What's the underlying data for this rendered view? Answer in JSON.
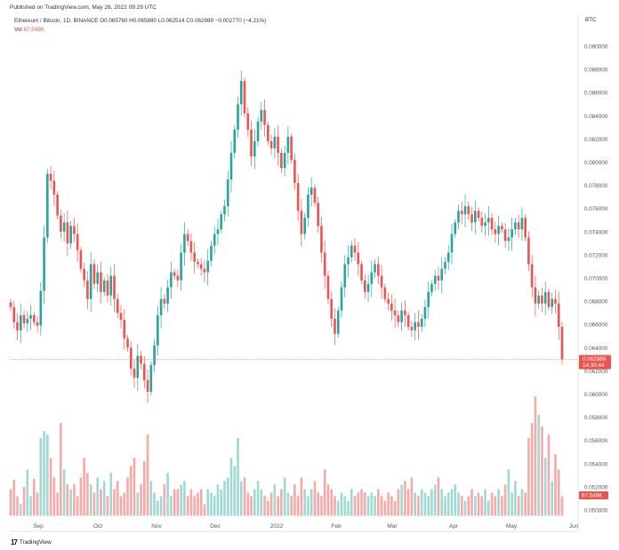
{
  "header": {
    "published": "Published on TradingView.com, May 26, 2022 09:29 UTC",
    "symbol": "Ethereum / Bitcoin, 1D, BINANCE",
    "ohlc": "O0.065760 H0.065880 L0.062514 C0.062989 −0.002770 (−4.21%)",
    "vol_label": "Vol",
    "vol_value": "67.549K",
    "currency": "BTC"
  },
  "footer": {
    "brand": "TradingView"
  },
  "colors": {
    "up": "#26a69a",
    "down": "#ef5350",
    "up_vol": "#9fd9d2",
    "down_vol": "#f7a9a7",
    "price_tag": "#ef5350",
    "vol_tag": "#ef5350"
  },
  "chart_data": {
    "type": "candlestick",
    "title": "Ethereum / Bitcoin, 1D, BINANCE",
    "xlabel": "",
    "ylabel": "",
    "x_ticks": [
      "Sep",
      "Oct",
      "Nov",
      "Dec",
      "2022",
      "Feb",
      "Mar",
      "Apr",
      "May",
      "Jun"
    ],
    "y_ticks": [
      "0.090000",
      "0.088000",
      "0.086000",
      "0.084000",
      "0.082000",
      "0.080000",
      "0.078000",
      "0.076000",
      "0.074000",
      "0.072000",
      "0.070000",
      "0.068000",
      "0.066000",
      "0.064000",
      "0.062000",
      "0.060000",
      "0.058000",
      "0.056000",
      "0.054000",
      "0.052000",
      "0.050000"
    ],
    "ylim": [
      0.05,
      0.091
    ],
    "last_price": "0.062989",
    "countdown": "14:30:44",
    "last_volume_label": "67.549K",
    "price_path": [
      0.0675,
      0.0662,
      0.0655,
      0.0668,
      0.0661,
      0.0665,
      0.0668,
      0.0662,
      0.0659,
      0.0689,
      0.0735,
      0.079,
      0.0784,
      0.0772,
      0.0754,
      0.074,
      0.0748,
      0.073,
      0.0745,
      0.0738,
      0.0724,
      0.0708,
      0.0698,
      0.0682,
      0.0712,
      0.0695,
      0.0705,
      0.0688,
      0.0698,
      0.0685,
      0.0702,
      0.0682,
      0.067,
      0.0664,
      0.0648,
      0.064,
      0.0622,
      0.0614,
      0.0633,
      0.0626,
      0.0612,
      0.0602,
      0.0625,
      0.0642,
      0.0668,
      0.0682,
      0.0678,
      0.0692,
      0.0705,
      0.0702,
      0.0698,
      0.0722,
      0.0738,
      0.0732,
      0.0722,
      0.0714,
      0.0712,
      0.0708,
      0.0705,
      0.0715,
      0.0728,
      0.0738,
      0.0742,
      0.0755,
      0.0762,
      0.0785,
      0.0808,
      0.0828,
      0.085,
      0.087,
      0.0842,
      0.0828,
      0.0805,
      0.0818,
      0.0835,
      0.0845,
      0.0832,
      0.0818,
      0.0812,
      0.0822,
      0.0808,
      0.0795,
      0.0808,
      0.0822,
      0.0802,
      0.0782,
      0.0758,
      0.0738,
      0.0752,
      0.0772,
      0.0778,
      0.0765,
      0.0745,
      0.0722,
      0.0702,
      0.0682,
      0.0665,
      0.0652,
      0.0672,
      0.0692,
      0.0712,
      0.0718,
      0.0728,
      0.0722,
      0.0712,
      0.0698,
      0.0688,
      0.0695,
      0.0705,
      0.0712,
      0.0702,
      0.0692,
      0.0682,
      0.0678,
      0.0672,
      0.0668,
      0.0662,
      0.0672,
      0.0668,
      0.0658,
      0.0655,
      0.0662,
      0.0658,
      0.0665,
      0.0675,
      0.0688,
      0.0695,
      0.0702,
      0.0698,
      0.0708,
      0.0714,
      0.0722,
      0.0738,
      0.0748,
      0.0758,
      0.0755,
      0.0762,
      0.0755,
      0.0748,
      0.0758,
      0.0752,
      0.0745,
      0.0748,
      0.0752,
      0.0742,
      0.0738,
      0.0745,
      0.0742,
      0.0732,
      0.0735,
      0.0742,
      0.0748,
      0.0742,
      0.0752,
      0.0735,
      0.0712,
      0.0692,
      0.0678,
      0.0685,
      0.0678,
      0.0688,
      0.0675,
      0.0682,
      0.0678,
      0.0658,
      0.063
    ],
    "volume": [
      0.0518,
      0.0526,
      0.0512,
      0.0505,
      0.052,
      0.0535,
      0.0512,
      0.0527,
      0.0515,
      0.0562,
      0.0568,
      0.0565,
      0.0545,
      0.0528,
      0.0515,
      0.0575,
      0.0535,
      0.0522,
      0.0518,
      0.0522,
      0.0512,
      0.0528,
      0.0545,
      0.0532,
      0.0522,
      0.0515,
      0.0528,
      0.0518,
      0.0525,
      0.0512,
      0.0532,
      0.0518,
      0.0525,
      0.0512,
      0.0515,
      0.0528,
      0.0538,
      0.0545,
      0.0515,
      0.0522,
      0.0542,
      0.0565,
      0.0525,
      0.0515,
      0.0508,
      0.0512,
      0.0522,
      0.0532,
      0.0512,
      0.0518,
      0.0518,
      0.0522,
      0.0525,
      0.0512,
      0.0518,
      0.0512,
      0.0515,
      0.0518,
      0.0505,
      0.0518,
      0.0515,
      0.0512,
      0.0522,
      0.0518,
      0.0525,
      0.0528,
      0.0545,
      0.0538,
      0.0562,
      0.0525,
      0.0528,
      0.0515,
      0.0512,
      0.0518,
      0.0525,
      0.0518,
      0.0512,
      0.0508,
      0.0515,
      0.0522,
      0.0512,
      0.0518,
      0.0528,
      0.0515,
      0.0512,
      0.0522,
      0.0512,
      0.0528,
      0.0518,
      0.0512,
      0.0518,
      0.0525,
      0.0515,
      0.0512,
      0.0535,
      0.0522,
      0.0518,
      0.0512,
      0.0508,
      0.0515,
      0.0512,
      0.0508,
      0.0518,
      0.0512,
      0.0515,
      0.0518,
      0.0515,
      0.0512,
      0.0515,
      0.0512,
      0.0518,
      0.0512,
      0.0508,
      0.0515,
      0.0512,
      0.0508,
      0.0518,
      0.0522,
      0.0525,
      0.0518,
      0.0528,
      0.0515,
      0.0512,
      0.0518,
      0.0515,
      0.0512,
      0.0518,
      0.0522,
      0.0528,
      0.0518,
      0.0512,
      0.0515,
      0.0518,
      0.0522,
      0.0515,
      0.0512,
      0.0508,
      0.0512,
      0.0518,
      0.0512,
      0.0515,
      0.0512,
      0.0518,
      0.0508,
      0.0515,
      0.0512,
      0.0518,
      0.0512,
      0.0522,
      0.0535,
      0.0515,
      0.0525,
      0.0512,
      0.0518,
      0.0515,
      0.0562,
      0.0575,
      0.0598,
      0.0582,
      0.0572,
      0.0545,
      0.0565,
      0.0525,
      0.0548,
      0.0535,
      0.0512
    ]
  }
}
